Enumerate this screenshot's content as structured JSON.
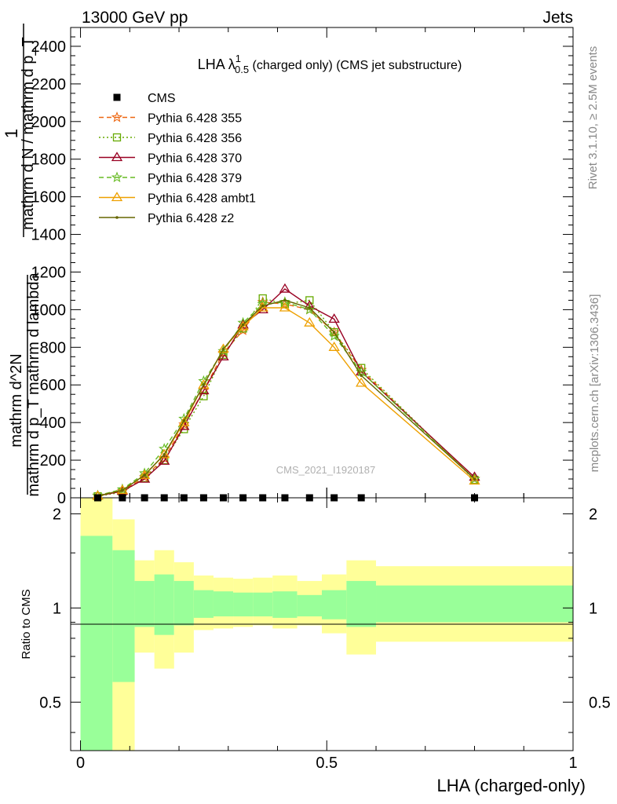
{
  "header": {
    "left": "13000 GeV pp",
    "right": "Jets"
  },
  "title": {
    "main": "LHA λ",
    "sup": "1",
    "sub": "0.5",
    "rest": " (charged only) (CMS jet substructure)"
  },
  "ylabel": {
    "numerator_1": "1",
    "denominator_1": "mathrm d N / mathrm d p_T",
    "numerator_2": "mathrm d^2N",
    "denominator_2": "mathrm d p_T mathrm d lambda"
  },
  "ratio_ylabel": "Ratio to CMS",
  "xlabel": "LHA (charged-only)",
  "right_labels": {
    "rivet": "Rivet 3.1.10, ≥ 2.5M events",
    "mcplots": "mcplots.cern.ch [arXiv:1306.3436]"
  },
  "watermark": "CMS_2021_I1920187",
  "chart_data": {
    "type": "line",
    "xlim": [
      -0.02,
      1.0
    ],
    "ylim": [
      0,
      2500
    ],
    "ratio_ylim": [
      0.35,
      2.25
    ],
    "x_ticks": [
      "0",
      "0.5",
      "1"
    ],
    "x_tick_values": [
      0,
      0.5,
      1
    ],
    "y_ticks": [
      "0",
      "200",
      "400",
      "600",
      "800",
      "1000",
      "1200",
      "1400",
      "1600",
      "1800",
      "2000",
      "2200",
      "2400"
    ],
    "y_tick_values": [
      0,
      200,
      400,
      600,
      800,
      1000,
      1200,
      1400,
      1600,
      1800,
      2000,
      2200,
      2400
    ],
    "ratio_ticks": [
      "0.5",
      "1",
      "2"
    ],
    "ratio_tick_values": [
      0.5,
      1,
      2
    ],
    "cms": {
      "name": "CMS",
      "x": [
        0.035,
        0.085,
        0.13,
        0.17,
        0.21,
        0.25,
        0.29,
        0.33,
        0.37,
        0.415,
        0.465,
        0.515,
        0.57,
        0.8
      ],
      "y": [
        0,
        0,
        0,
        0,
        0,
        0,
        0,
        0,
        0,
        0,
        0,
        0,
        0,
        0
      ]
    },
    "bands": {
      "edges": [
        0.0,
        0.065,
        0.11,
        0.15,
        0.19,
        0.23,
        0.27,
        0.31,
        0.35,
        0.39,
        0.44,
        0.49,
        0.54,
        0.6,
        1.0
      ],
      "yellow_lo": [
        0.35,
        0.35,
        0.72,
        0.64,
        0.72,
        0.85,
        0.86,
        0.87,
        0.88,
        0.86,
        0.88,
        0.83,
        0.71,
        0.78
      ],
      "yellow_hi": [
        2.25,
        1.92,
        1.42,
        1.53,
        1.4,
        1.27,
        1.25,
        1.24,
        1.25,
        1.27,
        1.22,
        1.28,
        1.42,
        1.36
      ],
      "green_lo": [
        0.35,
        0.58,
        0.87,
        0.82,
        0.88,
        0.93,
        0.94,
        0.94,
        0.94,
        0.93,
        0.94,
        0.92,
        0.87,
        0.9
      ],
      "green_hi": [
        1.7,
        1.53,
        1.22,
        1.28,
        1.22,
        1.14,
        1.13,
        1.12,
        1.12,
        1.13,
        1.1,
        1.14,
        1.22,
        1.18
      ]
    },
    "series": [
      {
        "name": "Pythia 6.428 355",
        "color": "#ee6611",
        "dash": "6,4",
        "marker": "star",
        "x": [
          0.035,
          0.085,
          0.13,
          0.17,
          0.21,
          0.25,
          0.29,
          0.33,
          0.37,
          0.415,
          0.465,
          0.515,
          0.57,
          0.8
        ],
        "y": [
          10,
          35,
          110,
          210,
          390,
          570,
          770,
          890,
          1040,
          1030,
          1000,
          880,
          680,
          100
        ]
      },
      {
        "name": "Pythia 6.428 356",
        "color": "#66aa00",
        "dash": "2,3",
        "marker": "square",
        "x": [
          0.035,
          0.085,
          0.13,
          0.17,
          0.21,
          0.25,
          0.29,
          0.33,
          0.37,
          0.415,
          0.465,
          0.515,
          0.57,
          0.8
        ],
        "y": [
          8,
          30,
          105,
          200,
          365,
          540,
          760,
          900,
          1060,
          1030,
          1050,
          880,
          690,
          95
        ]
      },
      {
        "name": "Pythia 6.428 370",
        "color": "#990022",
        "dash": "",
        "marker": "triangle",
        "x": [
          0.035,
          0.085,
          0.13,
          0.17,
          0.21,
          0.25,
          0.29,
          0.33,
          0.37,
          0.415,
          0.465,
          0.515,
          0.57,
          0.8
        ],
        "y": [
          10,
          35,
          100,
          195,
          380,
          570,
          750,
          920,
          1000,
          1110,
          1020,
          950,
          670,
          110
        ]
      },
      {
        "name": "Pythia 6.428 379",
        "color": "#66bb22",
        "dash": "6,4",
        "marker": "star",
        "x": [
          0.035,
          0.085,
          0.13,
          0.17,
          0.21,
          0.25,
          0.29,
          0.33,
          0.37,
          0.415,
          0.465,
          0.515,
          0.57,
          0.8
        ],
        "y": [
          12,
          45,
          130,
          260,
          420,
          620,
          780,
          930,
          1030,
          1040,
          1000,
          860,
          670,
          100
        ]
      },
      {
        "name": "Pythia 6.428 ambt1",
        "color": "#eea000",
        "dash": "",
        "marker": "triangle",
        "x": [
          0.035,
          0.085,
          0.13,
          0.17,
          0.21,
          0.25,
          0.29,
          0.33,
          0.37,
          0.415,
          0.465,
          0.515,
          0.57,
          0.8
        ],
        "y": [
          10,
          40,
          120,
          230,
          400,
          600,
          790,
          910,
          1010,
          1010,
          930,
          800,
          610,
          90
        ]
      },
      {
        "name": "Pythia 6.428 z2",
        "color": "#666600",
        "dash": "",
        "marker": "dot",
        "x": [
          0.035,
          0.085,
          0.13,
          0.17,
          0.21,
          0.25,
          0.29,
          0.33,
          0.37,
          0.415,
          0.465,
          0.515,
          0.57,
          0.8
        ],
        "y": [
          10,
          40,
          120,
          230,
          410,
          600,
          790,
          920,
          1020,
          1050,
          1010,
          880,
          650,
          100
        ]
      }
    ]
  }
}
